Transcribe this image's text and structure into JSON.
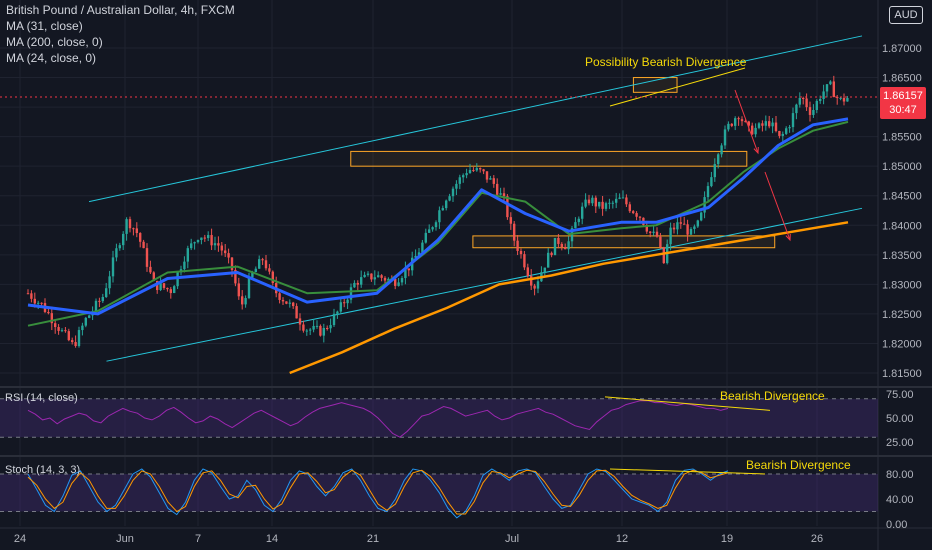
{
  "header": {
    "instrument": "British Pound / Australian Dollar, 4h, FXCM",
    "indicators": [
      "MA (31, close)",
      "MA (200, close, 0)",
      "MA (24, close, 0)"
    ],
    "currency_button": "AUD"
  },
  "current_price": {
    "price": "1.86157",
    "countdown": "30:47",
    "value": 1.86157
  },
  "colors": {
    "background": "#131722",
    "bull_candle": "#26a69a",
    "bear_candle": "#ef5350",
    "ma31": "#2962ff",
    "ma200": "#ff9800",
    "ma24": "#388e3c",
    "channel": "#26c6da",
    "annotation": "#f5d90a",
    "box": "#ffa726",
    "arrow": "#f23645",
    "oscillator_band": "#4a2d80",
    "rsi_line": "#9c27b0",
    "stoch_k": "#2196f3",
    "stoch_d": "#ff9800"
  },
  "chart_data": [
    {
      "type": "candlestick",
      "title": "British Pound / Australian Dollar, 4h, FXCM",
      "x_tick_labels": [
        "24",
        "Jun",
        "7",
        "14",
        "21",
        "Jul",
        "12",
        "19",
        "26"
      ],
      "y_tick_labels": [
        "1.81500",
        "1.82000",
        "1.82500",
        "1.83000",
        "1.83500",
        "1.84000",
        "1.84500",
        "1.85000",
        "1.85500",
        "1.86000",
        "1.86500",
        "1.87000"
      ],
      "ylim": [
        1.813,
        1.873
      ],
      "axis_unit": "AUD",
      "price_path": [
        [
          0,
          1.8285
        ],
        [
          8,
          1.8265
        ],
        [
          18,
          1.8225
        ],
        [
          26,
          1.8195
        ],
        [
          33,
          1.824
        ],
        [
          43,
          1.828
        ],
        [
          52,
          1.837
        ],
        [
          57,
          1.841
        ],
        [
          63,
          1.8385
        ],
        [
          72,
          1.83
        ],
        [
          82,
          1.829
        ],
        [
          90,
          1.835
        ],
        [
          98,
          1.8385
        ],
        [
          110,
          1.8365
        ],
        [
          117,
          1.8325
        ],
        [
          122,
          1.826
        ],
        [
          128,
          1.8315
        ],
        [
          135,
          1.8345
        ],
        [
          141,
          1.829
        ],
        [
          150,
          1.8265
        ],
        [
          159,
          1.8225
        ],
        [
          169,
          1.822
        ],
        [
          178,
          1.8255
        ],
        [
          188,
          1.8305
        ],
        [
          199,
          1.8315
        ],
        [
          210,
          1.8305
        ],
        [
          220,
          1.8335
        ],
        [
          230,
          1.839
        ],
        [
          240,
          1.845
        ],
        [
          252,
          1.8495
        ],
        [
          260,
          1.849
        ],
        [
          267,
          1.847
        ],
        [
          273,
          1.844
        ],
        [
          278,
          1.838
        ],
        [
          284,
          1.834
        ],
        [
          290,
          1.8295
        ],
        [
          297,
          1.834
        ],
        [
          303,
          1.8375
        ],
        [
          309,
          1.8365
        ],
        [
          316,
          1.842
        ],
        [
          322,
          1.8445
        ],
        [
          328,
          1.843
        ],
        [
          334,
          1.8435
        ],
        [
          340,
          1.8445
        ],
        [
          345,
          1.843
        ],
        [
          351,
          1.8415
        ],
        [
          357,
          1.8385
        ],
        [
          361,
          1.838
        ],
        [
          364,
          1.833
        ],
        [
          368,
          1.839
        ],
        [
          374,
          1.8405
        ],
        [
          380,
          1.8385
        ],
        [
          385,
          1.8405
        ],
        [
          390,
          1.847
        ],
        [
          395,
          1.8525
        ],
        [
          401,
          1.8565
        ],
        [
          407,
          1.859
        ],
        [
          413,
          1.856
        ],
        [
          419,
          1.8565
        ],
        [
          425,
          1.8575
        ],
        [
          431,
          1.8545
        ],
        [
          437,
          1.8575
        ],
        [
          443,
          1.862
        ],
        [
          449,
          1.859
        ],
        [
          455,
          1.8625
        ],
        [
          460,
          1.8635
        ],
        [
          465,
          1.861
        ],
        [
          470,
          1.8616
        ]
      ],
      "moving_averages": [
        {
          "name": "MA (31, close)",
          "points": [
            [
              0,
              1.8265
            ],
            [
              40,
              1.825
            ],
            [
              80,
              1.831
            ],
            [
              120,
              1.832
            ],
            [
              160,
              1.827
            ],
            [
              200,
              1.8285
            ],
            [
              235,
              1.8375
            ],
            [
              260,
              1.846
            ],
            [
              285,
              1.842
            ],
            [
              310,
              1.839
            ],
            [
              340,
              1.8405
            ],
            [
              360,
              1.8405
            ],
            [
              390,
              1.843
            ],
            [
              410,
              1.848
            ],
            [
              430,
              1.8535
            ],
            [
              450,
              1.857
            ],
            [
              470,
              1.858
            ]
          ]
        },
        {
          "name": "MA (200, close, 0)",
          "points": [
            [
              150,
              1.815
            ],
            [
              180,
              1.8185
            ],
            [
              210,
              1.8225
            ],
            [
              240,
              1.826
            ],
            [
              270,
              1.83
            ],
            [
              300,
              1.8315
            ],
            [
              330,
              1.8335
            ],
            [
              360,
              1.835
            ],
            [
              390,
              1.8365
            ],
            [
              420,
              1.838
            ],
            [
              450,
              1.8395
            ],
            [
              470,
              1.8405
            ]
          ]
        },
        {
          "name": "MA (24, close, 0)",
          "points": [
            [
              0,
              1.823
            ],
            [
              40,
              1.8255
            ],
            [
              80,
              1.832
            ],
            [
              120,
              1.833
            ],
            [
              160,
              1.8285
            ],
            [
              200,
              1.829
            ],
            [
              235,
              1.837
            ],
            [
              260,
              1.8455
            ],
            [
              285,
              1.844
            ],
            [
              310,
              1.8385
            ],
            [
              340,
              1.8395
            ],
            [
              360,
              1.84
            ],
            [
              390,
              1.844
            ],
            [
              410,
              1.849
            ],
            [
              430,
              1.853
            ],
            [
              450,
              1.856
            ],
            [
              470,
              1.8575
            ]
          ]
        }
      ],
      "channel": {
        "upper": [
          [
            35,
            1.844
          ],
          [
            430,
            1.869
          ]
        ],
        "lower": [
          [
            45,
            1.817
          ],
          [
            430,
            1.84
          ]
        ]
      },
      "zones": [
        {
          "x": [
            185,
            412
          ],
          "y": [
            1.85,
            1.8525
          ]
        },
        {
          "x": [
            255,
            428
          ],
          "y": [
            1.8362,
            1.8382
          ]
        },
        {
          "x": [
            347,
            372
          ],
          "y": [
            1.8625,
            1.865
          ]
        }
      ],
      "annotations": [
        {
          "text": "Possibility Bearish Divergence",
          "x": 334,
          "y": 1.867
        }
      ]
    },
    {
      "type": "line",
      "title": "RSI (14, close)",
      "ylim": [
        20,
        80
      ],
      "y_tick_labels": [
        "75.00",
        "50.00",
        "25.00"
      ],
      "band": [
        30,
        70
      ],
      "values": [
        58,
        54,
        48,
        50,
        44,
        49,
        52,
        55,
        53,
        47,
        45,
        52,
        56,
        60,
        57,
        55,
        50,
        48,
        52,
        58,
        61,
        56,
        50,
        45,
        47,
        52,
        49,
        44,
        40,
        45,
        50,
        55,
        58,
        54,
        50,
        46,
        42,
        45,
        51,
        56,
        60,
        62,
        64,
        66,
        64,
        62,
        60,
        56,
        50,
        42,
        34,
        30,
        36,
        44,
        52,
        54,
        58,
        62,
        60,
        56,
        52,
        54,
        56,
        58,
        52,
        48,
        50,
        54,
        56,
        58,
        60,
        56,
        54,
        50,
        46,
        42,
        40,
        38,
        46,
        52,
        58,
        60,
        64,
        66,
        68,
        68,
        66,
        66,
        64,
        63,
        65,
        64,
        62,
        60,
        60,
        58,
        60
      ],
      "annotation": "Bearish Divergence"
    },
    {
      "type": "line",
      "title": "Stoch (14, 3, 3)",
      "ylim": [
        0,
        100
      ],
      "y_tick_labels": [
        "80.00",
        "40.00",
        "0.00"
      ],
      "band": [
        20,
        80
      ],
      "series": [
        {
          "name": "%K",
          "values": [
            80,
            55,
            30,
            20,
            45,
            78,
            85,
            60,
            35,
            20,
            30,
            55,
            80,
            88,
            75,
            50,
            25,
            15,
            35,
            70,
            88,
            82,
            60,
            40,
            45,
            70,
            55,
            30,
            20,
            40,
            70,
            85,
            80,
            60,
            45,
            60,
            82,
            88,
            70,
            45,
            25,
            20,
            40,
            70,
            88,
            85,
            70,
            50,
            25,
            10,
            20,
            45,
            78,
            88,
            80,
            70,
            85,
            88,
            82,
            60,
            40,
            25,
            30,
            55,
            80,
            88,
            84,
            70,
            55,
            40,
            35,
            30,
            20,
            35,
            70,
            86,
            88,
            80,
            70,
            80,
            85
          ],
          "annotation": "Bearish Divergence"
        },
        {
          "name": "%D",
          "values": [
            75,
            62,
            40,
            25,
            35,
            65,
            82,
            70,
            45,
            25,
            25,
            45,
            70,
            85,
            80,
            60,
            35,
            20,
            28,
            60,
            82,
            85,
            70,
            48,
            42,
            60,
            62,
            40,
            24,
            32,
            58,
            80,
            82,
            68,
            50,
            55,
            75,
            86,
            78,
            55,
            32,
            22,
            32,
            60,
            82,
            86,
            76,
            58,
            35,
            16,
            16,
            36,
            66,
            84,
            82,
            74,
            80,
            86,
            84,
            68,
            48,
            30,
            28,
            46,
            70,
            85,
            86,
            76,
            60,
            46,
            38,
            32,
            25,
            30,
            58,
            80,
            86,
            82,
            74,
            78,
            82
          ]
        }
      ]
    }
  ],
  "price_axis": {
    "price_ticks": [
      "1.81500",
      "1.82000",
      "1.82500",
      "1.83000",
      "1.83500",
      "1.84000",
      "1.84500",
      "1.85000",
      "1.85500",
      "1.86000",
      "1.86500",
      "1.87000"
    ]
  },
  "time_axis": {
    "labels": [
      "24",
      "Jun",
      "7",
      "14",
      "21",
      "Jul",
      "12",
      "19",
      "26"
    ]
  },
  "rsi": {
    "label": "RSI (14, close)",
    "ticks": [
      "75.00",
      "50.00",
      "25.00"
    ],
    "annotation": "Bearish Divergence"
  },
  "stoch": {
    "label": "Stoch (14, 3, 3)",
    "ticks": [
      "80.00",
      "40.00",
      "0.00"
    ],
    "annotation": "Bearish Divergence"
  }
}
